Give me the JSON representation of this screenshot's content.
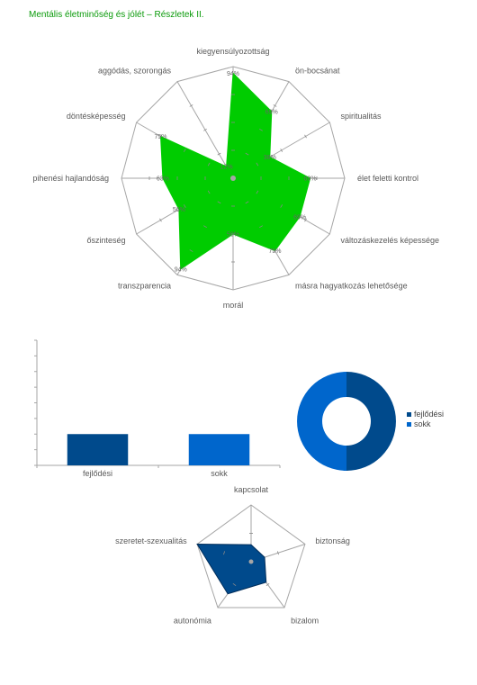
{
  "page": {
    "title": "Mentális életminőség és jólét – Részletek II."
  },
  "colors": {
    "title_green": "#0a9a0a",
    "radar_fill": "#00cc00",
    "dark_blue": "#004a8c",
    "light_blue": "#0066cc",
    "grid": "#a6a6a6"
  },
  "chart_data": [
    {
      "type": "radar",
      "title": "",
      "grid": "dodecagon",
      "categories": [
        "kiegyensúlyozottság",
        "ön-bocsánat",
        "spiritualitás",
        "élet feletti kontrol",
        "változáskezelés képessége",
        "másra hagyatkozás lehetősége",
        "morál",
        "transzparencia",
        "őszinteség",
        "pihenési hajlandóság",
        "döntésképesség",
        "aggódás, szorongás"
      ],
      "values": [
        94,
        69,
        38,
        69,
        69,
        75,
        50,
        94,
        56,
        63,
        75,
        12
      ],
      "data_labels": [
        "94%",
        "69%",
        "38%",
        "69%",
        "69%",
        "75%",
        "50%",
        "94%",
        "56%",
        "63%",
        "75%",
        "12%"
      ],
      "range": [
        0,
        100
      ],
      "color": "#00cc00"
    },
    {
      "type": "bar",
      "title": "",
      "categories": [
        "fejlődési",
        "sokk"
      ],
      "values": [
        1,
        1
      ],
      "colors": [
        "#004a8c",
        "#0066cc"
      ],
      "ylim": [
        0,
        4
      ]
    },
    {
      "type": "pie",
      "style": "donut",
      "title": "",
      "categories": [
        "fejlődési",
        "sokk"
      ],
      "values": [
        1,
        1
      ],
      "colors": [
        "#004a8c",
        "#0066cc"
      ],
      "legend": "right"
    },
    {
      "type": "radar",
      "title": "",
      "grid": "pentagon",
      "categories": [
        "kapcsolat",
        "biztonság",
        "bizalom",
        "autonómia",
        "szeretet-szexualitás"
      ],
      "values": [
        0.3,
        0.25,
        0.45,
        0.7,
        1.0
      ],
      "range": [
        0,
        1
      ],
      "color": "#004a8c"
    }
  ]
}
